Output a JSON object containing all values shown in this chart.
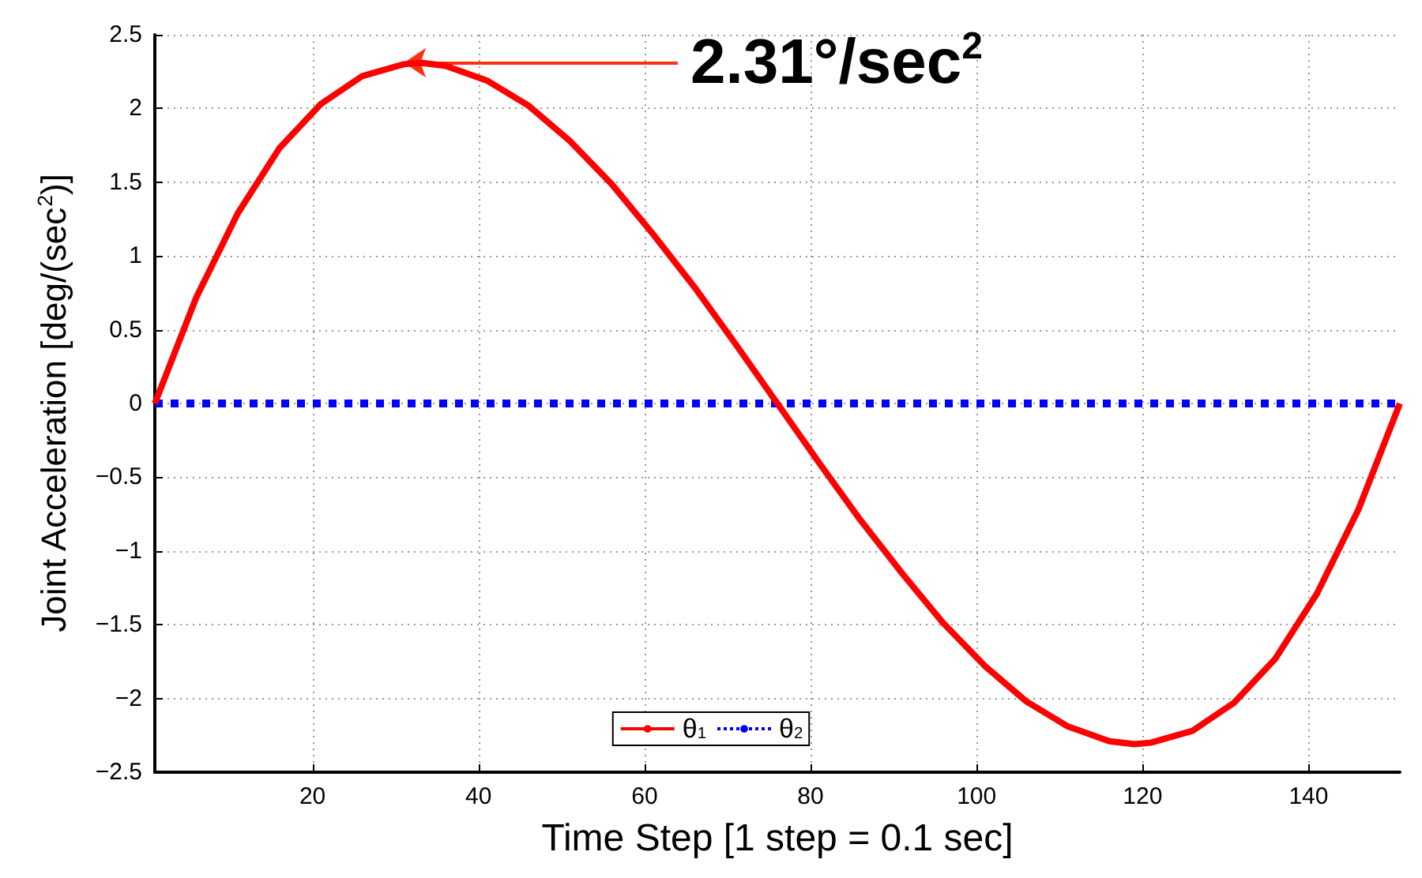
{
  "chart_data": {
    "type": "line",
    "xlabel": "Time Step [1 step = 0.1 sec]",
    "ylabel": "Joint Acceleration [deg/(sec$^{2}$)]",
    "xlim": [
      1,
      151
    ],
    "xticks": [
      20,
      40,
      60,
      80,
      100,
      120,
      140
    ],
    "ylim": [
      -2.5,
      2.5
    ],
    "yticks": [
      -2.5,
      -2,
      -1.5,
      -1,
      -0.5,
      0,
      0.5,
      1,
      1.5,
      2,
      2.5
    ],
    "grid": true,
    "legend": "bottom",
    "marker": "none",
    "annotations": [
      {
        "text": "2.31°/sec$^{2}$",
        "x": 31,
        "y": 2.31
      }
    ],
    "series": [
      {
        "name": "θ$_{1}$",
        "color": "#ff0000",
        "line_style": "solid",
        "x": [
          1,
          6,
          11,
          16,
          21,
          26,
          31,
          33,
          36,
          41,
          46,
          51,
          56,
          61,
          66,
          71,
          76,
          81,
          86,
          91,
          96,
          101,
          106,
          111,
          116,
          119,
          121,
          126,
          131,
          136,
          141,
          146,
          151
        ],
        "values": [
          0,
          0.72,
          1.29,
          1.73,
          2.03,
          2.22,
          2.3,
          2.31,
          2.29,
          2.19,
          2.02,
          1.78,
          1.49,
          1.15,
          0.79,
          0.4,
          0,
          -0.4,
          -0.79,
          -1.15,
          -1.49,
          -1.78,
          -2.02,
          -2.19,
          -2.29,
          -2.31,
          -2.3,
          -2.22,
          -2.03,
          -1.73,
          -1.29,
          -0.72,
          0
        ]
      },
      {
        "name": "θ$_{2}$",
        "color": "#0000ff",
        "line_style": "dotted",
        "x": [
          1,
          151
        ],
        "values": [
          0,
          0
        ]
      }
    ]
  }
}
